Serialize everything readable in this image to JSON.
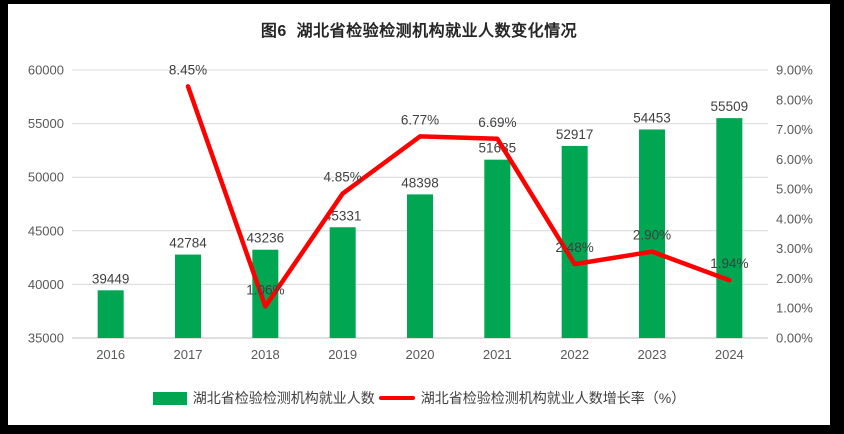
{
  "chart_data": {
    "type": "bar",
    "subtype": "combo-bar-line",
    "title": "图6  湖北省检验检测机构就业人数变化情况",
    "categories": [
      "2016",
      "2017",
      "2018",
      "2019",
      "2020",
      "2021",
      "2022",
      "2023",
      "2024"
    ],
    "series": [
      {
        "name": "湖北省检验检测机构就业人数",
        "type": "bar",
        "axis": "left",
        "color": "#00A651",
        "values": [
          39449,
          42784,
          43236,
          45331,
          48398,
          51635,
          52917,
          54453,
          55509
        ],
        "labels": [
          "39449",
          "42784",
          "43236",
          "45331",
          "48398",
          "51635",
          "52917",
          "54453",
          "55509"
        ]
      },
      {
        "name": "湖北省检验检测机构就业人数增长率（%）",
        "type": "line",
        "axis": "right",
        "color": "#FF0000",
        "values": [
          null,
          8.45,
          1.06,
          4.85,
          6.77,
          6.69,
          2.48,
          2.9,
          1.94
        ],
        "labels": [
          null,
          "8.45%",
          "1.06%",
          "4.85%",
          "6.77%",
          "6.69%",
          "2.48%",
          "2.90%",
          "1.94%"
        ]
      }
    ],
    "left_axis": {
      "min": 35000,
      "max": 60000,
      "step": 5000,
      "ticks": [
        "35000",
        "40000",
        "45000",
        "50000",
        "55000",
        "60000"
      ]
    },
    "right_axis": {
      "min": 0,
      "max": 9,
      "step": 1,
      "ticks": [
        "0.00%",
        "1.00%",
        "2.00%",
        "3.00%",
        "4.00%",
        "5.00%",
        "6.00%",
        "7.00%",
        "8.00%",
        "9.00%"
      ]
    },
    "grid": true,
    "legend_position": "bottom",
    "colors": {
      "bar": "#00A651",
      "line": "#FF0000",
      "gridline": "#D9D9D9",
      "axis_line": "#BFBFBF",
      "tick_text": "#595959",
      "data_label": "#404040",
      "title_text": "#262626",
      "background": "#FFFFFF",
      "frame": "#000000"
    }
  }
}
